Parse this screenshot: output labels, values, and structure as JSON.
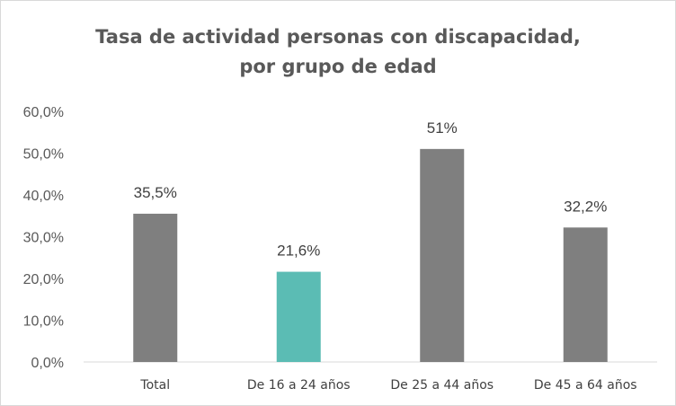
{
  "chart_data": {
    "type": "bar",
    "title_line1": "Tasa de actividad personas con discapacidad,",
    "title_line2": "por grupo  de edad",
    "categories": [
      "Total",
      "De 16 a 24 años",
      "De 25 a 44 años",
      "De 45 a 64 años"
    ],
    "values": [
      35.5,
      21.6,
      51,
      32.2
    ],
    "data_labels": [
      "35,5%",
      "21,6%",
      "51%",
      "32,2%"
    ],
    "ylim": [
      0,
      60
    ],
    "yticks": [
      0,
      10,
      20,
      30,
      40,
      50,
      60
    ],
    "ytick_labels": [
      "0,0%",
      "10,0%",
      "20,0%",
      "30,0%",
      "40,0%",
      "50,0%",
      "60,0%"
    ],
    "bar_colors": [
      "#7f7f7f",
      "#5bbcb4",
      "#7f7f7f",
      "#7f7f7f"
    ],
    "grid": false,
    "legend": "none"
  }
}
